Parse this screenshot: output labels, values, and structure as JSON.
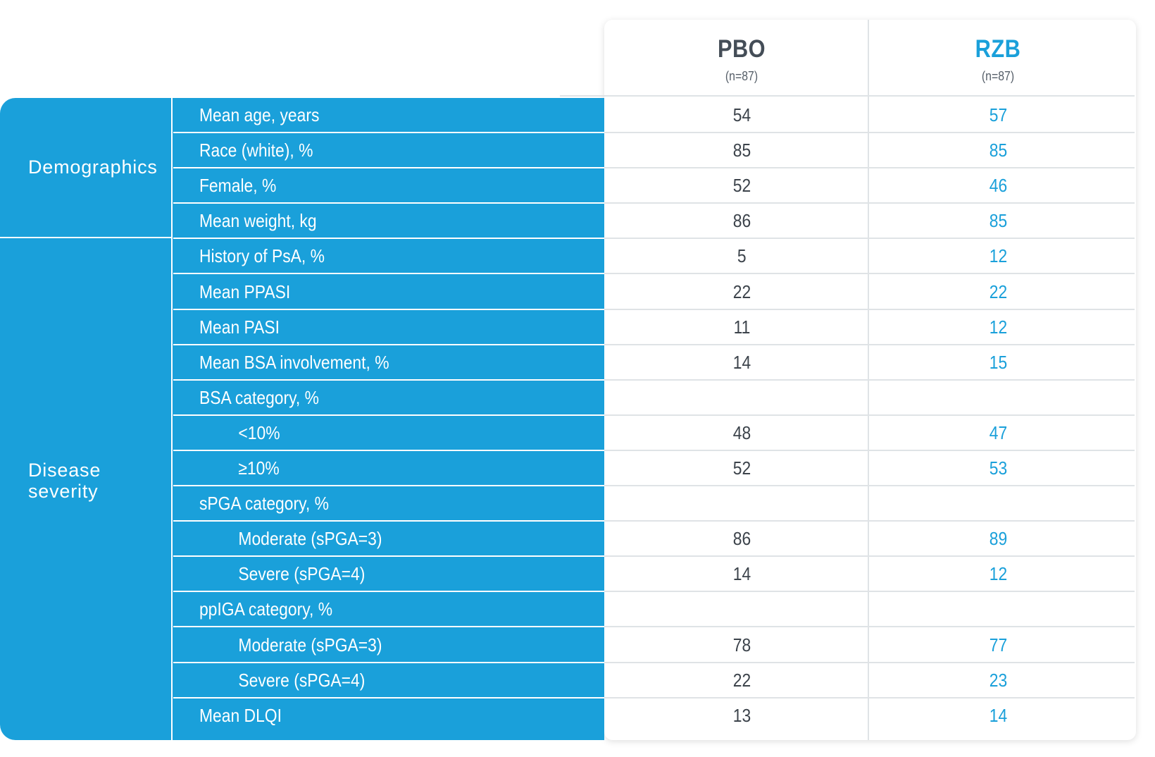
{
  "columns": {
    "pbo": {
      "name": "PBO",
      "n": "(n=87)"
    },
    "rzb": {
      "name": "RZB",
      "n": "(n=87)"
    }
  },
  "groups": {
    "demographics": "Demographics",
    "disease_line1": "Disease",
    "disease_line2": "severity"
  },
  "rows": [
    {
      "label": "Mean age, years",
      "pbo": "54",
      "rzb": "57"
    },
    {
      "label": "Race (white), %",
      "pbo": "85",
      "rzb": "85"
    },
    {
      "label": "Female, %",
      "pbo": "52",
      "rzb": "46"
    },
    {
      "label": "Mean weight, kg",
      "pbo": "86",
      "rzb": "85"
    },
    {
      "label": "History of PsA, %",
      "pbo": "5",
      "rzb": "12"
    },
    {
      "label": "Mean PPASI",
      "pbo": "22",
      "rzb": "22"
    },
    {
      "label": "Mean PASI",
      "pbo": "11",
      "rzb": "12"
    },
    {
      "label": "Mean BSA involvement, %",
      "pbo": "14",
      "rzb": "15"
    },
    {
      "label": "BSA category, %",
      "pbo": "",
      "rzb": ""
    },
    {
      "label": "<10%",
      "pbo": "48",
      "rzb": "47"
    },
    {
      "label": "≥10%",
      "pbo": "52",
      "rzb": "53"
    },
    {
      "label": "sPGA category, %",
      "pbo": "",
      "rzb": ""
    },
    {
      "label": "Moderate (sPGA=3)",
      "pbo": "86",
      "rzb": "89"
    },
    {
      "label": "Severe (sPGA=4)",
      "pbo": "14",
      "rzb": "12"
    },
    {
      "label": "ppIGA category, %",
      "pbo": "",
      "rzb": ""
    },
    {
      "label": "Moderate (sPGA=3)",
      "pbo": "78",
      "rzb": "77"
    },
    {
      "label": "Severe (sPGA=4)",
      "pbo": "22",
      "rzb": "23"
    },
    {
      "label": "Mean DLQI",
      "pbo": "13",
      "rzb": "14"
    }
  ],
  "colors": {
    "accent_blue": "#1aa0da",
    "dark_text": "#3c434b",
    "grid": "#dfe3e6"
  }
}
